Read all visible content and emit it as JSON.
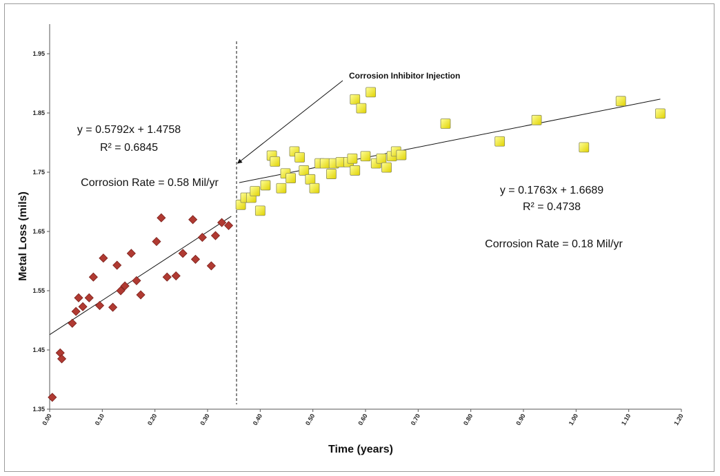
{
  "chart_data": {
    "type": "scatter",
    "xlabel": "Time (years)",
    "ylabel": "Metal Loss (mils)",
    "xlim": [
      0.0,
      1.2
    ],
    "ylim": [
      1.35,
      2.0
    ],
    "x_ticks": [
      "0.00",
      "0.10",
      "0.20",
      "0.30",
      "0.40",
      "0.50",
      "0.60",
      "0.70",
      "0.80",
      "0.90",
      "1.00",
      "1.10",
      "1.20"
    ],
    "y_ticks": [
      "1.35",
      "1.45",
      "1.55",
      "1.65",
      "1.75",
      "1.85",
      "1.95"
    ],
    "grid": false,
    "series": [
      {
        "marker": "diamond",
        "color": "#b03a32",
        "points": [
          [
            0.005,
            1.37
          ],
          [
            0.02,
            1.445
          ],
          [
            0.023,
            1.435
          ],
          [
            0.043,
            1.495
          ],
          [
            0.05,
            1.515
          ],
          [
            0.055,
            1.538
          ],
          [
            0.063,
            1.523
          ],
          [
            0.075,
            1.538
          ],
          [
            0.083,
            1.573
          ],
          [
            0.095,
            1.525
          ],
          [
            0.102,
            1.605
          ],
          [
            0.12,
            1.522
          ],
          [
            0.128,
            1.593
          ],
          [
            0.135,
            1.55
          ],
          [
            0.143,
            1.558
          ],
          [
            0.155,
            1.613
          ],
          [
            0.165,
            1.567
          ],
          [
            0.173,
            1.543
          ],
          [
            0.203,
            1.633
          ],
          [
            0.212,
            1.673
          ],
          [
            0.223,
            1.573
          ],
          [
            0.24,
            1.575
          ],
          [
            0.253,
            1.613
          ],
          [
            0.272,
            1.67
          ],
          [
            0.277,
            1.603
          ],
          [
            0.29,
            1.64
          ],
          [
            0.307,
            1.592
          ],
          [
            0.315,
            1.643
          ],
          [
            0.327,
            1.665
          ],
          [
            0.34,
            1.66
          ]
        ]
      },
      {
        "marker": "square",
        "color": "#ffff00",
        "points": [
          [
            0.363,
            1.695
          ],
          [
            0.372,
            1.707
          ],
          [
            0.383,
            1.707
          ],
          [
            0.39,
            1.718
          ],
          [
            0.4,
            1.685
          ],
          [
            0.41,
            1.728
          ],
          [
            0.422,
            1.778
          ],
          [
            0.428,
            1.768
          ],
          [
            0.44,
            1.723
          ],
          [
            0.448,
            1.748
          ],
          [
            0.458,
            1.74
          ],
          [
            0.465,
            1.785
          ],
          [
            0.475,
            1.775
          ],
          [
            0.483,
            1.753
          ],
          [
            0.495,
            1.738
          ],
          [
            0.503,
            1.723
          ],
          [
            0.513,
            1.765
          ],
          [
            0.523,
            1.765
          ],
          [
            0.535,
            1.747
          ],
          [
            0.54,
            1.765
          ],
          [
            0.553,
            1.767
          ],
          [
            0.568,
            1.767
          ],
          [
            0.575,
            1.773
          ],
          [
            0.58,
            1.753
          ],
          [
            0.58,
            1.873
          ],
          [
            0.592,
            1.858
          ],
          [
            0.6,
            1.777
          ],
          [
            0.61,
            1.885
          ],
          [
            0.62,
            1.765
          ],
          [
            0.63,
            1.773
          ],
          [
            0.64,
            1.758
          ],
          [
            0.65,
            1.777
          ],
          [
            0.658,
            1.785
          ],
          [
            0.668,
            1.779
          ],
          [
            0.752,
            1.832
          ],
          [
            0.855,
            1.802
          ],
          [
            0.925,
            1.838
          ],
          [
            1.015,
            1.792
          ],
          [
            1.085,
            1.87
          ],
          [
            1.16,
            1.849
          ]
        ]
      }
    ],
    "trendlines": [
      {
        "slope": 0.5792,
        "intercept": 1.4758,
        "x_range": [
          0.0,
          0.345
        ]
      },
      {
        "slope": 0.1763,
        "intercept": 1.6689,
        "x_range": [
          0.36,
          1.16
        ]
      }
    ],
    "vline_x": 0.355,
    "annotations": {
      "left_eq": "y = 0.5792x + 1.4758",
      "left_r2": "R² = 0.6845",
      "left_rate": "Corrosion Rate = 0.58 Mil/yr",
      "right_eq": "y = 0.1763x + 1.6689",
      "right_r2": "R² = 0.4738",
      "right_rate": "Corrosion Rate = 0.18 Mil/yr",
      "injection": "Corrosion Inhibitor Injection",
      "injection_arrow_to": [
        0.357,
        1.765
      ]
    }
  }
}
